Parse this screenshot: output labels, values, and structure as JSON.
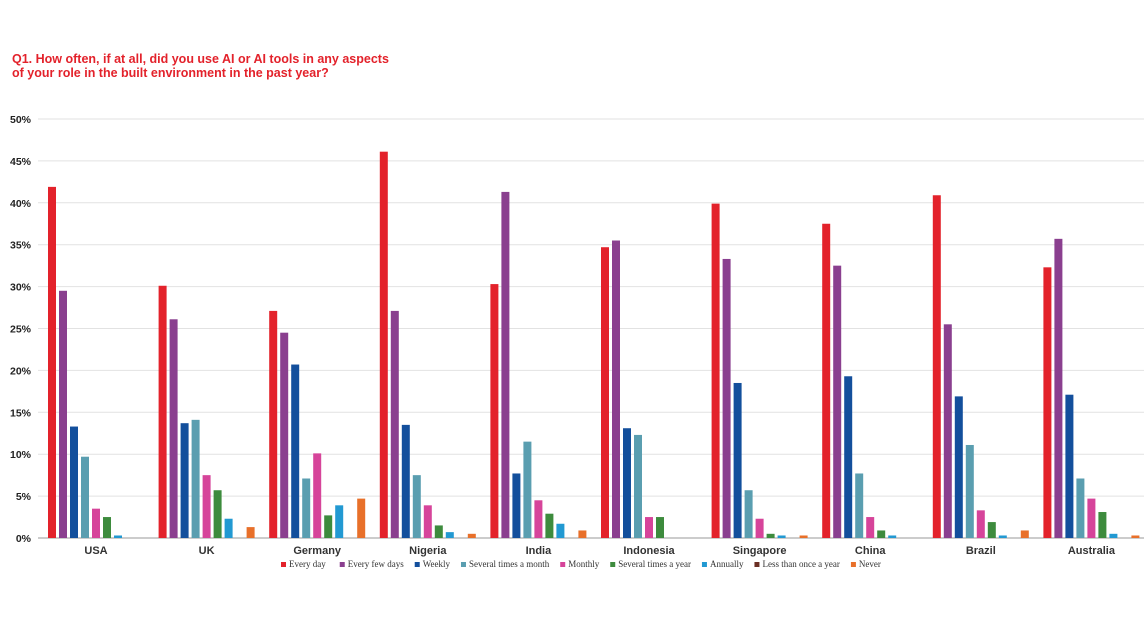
{
  "chart_data": {
    "type": "bar",
    "title": "Q1. How often, if at all, did you use AI or AI tools in any aspects\nof your role in the built environment in the past year?",
    "xlabel": "",
    "ylabel": "",
    "ylim": [
      0,
      50
    ],
    "yticks": [
      "0%",
      "5%",
      "10%",
      "15%",
      "20%",
      "25%",
      "30%",
      "35%",
      "40%",
      "45%",
      "50%"
    ],
    "grid": true,
    "legend_position": "bottom",
    "categories": [
      "USA",
      "UK",
      "Germany",
      "Nigeria",
      "India",
      "Indonesia",
      "Singapore",
      "China",
      "Brazil",
      "Australia"
    ],
    "series": [
      {
        "name": "Every day",
        "color": "#e3222b",
        "values": [
          41.9,
          30.1,
          27.1,
          46.1,
          30.3,
          34.7,
          39.9,
          37.5,
          40.9,
          32.3
        ]
      },
      {
        "name": "Every few days",
        "color": "#8a3f8f",
        "values": [
          29.5,
          26.1,
          24.5,
          27.1,
          41.3,
          35.5,
          33.3,
          32.5,
          25.5,
          35.7
        ]
      },
      {
        "name": "Weekly",
        "color": "#134f9c",
        "values": [
          13.3,
          13.7,
          20.7,
          13.5,
          7.7,
          13.1,
          18.5,
          19.3,
          16.9,
          17.1
        ]
      },
      {
        "name": "Several times a month",
        "color": "#5a9eb0",
        "values": [
          9.7,
          14.1,
          7.1,
          7.5,
          11.5,
          12.3,
          5.7,
          7.7,
          11.1,
          7.1
        ]
      },
      {
        "name": "Monthly",
        "color": "#d6449a",
        "values": [
          3.5,
          7.5,
          10.1,
          3.9,
          4.5,
          2.5,
          2.3,
          2.5,
          3.3,
          4.7
        ]
      },
      {
        "name": "Several times a year",
        "color": "#3d8b3d",
        "values": [
          2.5,
          5.7,
          2.7,
          1.5,
          2.9,
          2.5,
          0.5,
          0.9,
          1.9,
          3.1
        ]
      },
      {
        "name": "Annually",
        "color": "#2299d2",
        "values": [
          0.3,
          2.3,
          3.9,
          0.7,
          1.7,
          0,
          0.3,
          0.3,
          0.3,
          0.5
        ]
      },
      {
        "name": "Less than once a year",
        "color": "#6b2f24",
        "values": [
          0,
          0,
          0,
          0,
          0,
          0,
          0,
          0,
          0,
          0
        ]
      },
      {
        "name": "Never",
        "color": "#e8702a",
        "values": [
          0,
          1.3,
          4.7,
          0.5,
          0.9,
          0,
          0.3,
          0,
          0.9,
          0.3
        ]
      }
    ]
  }
}
